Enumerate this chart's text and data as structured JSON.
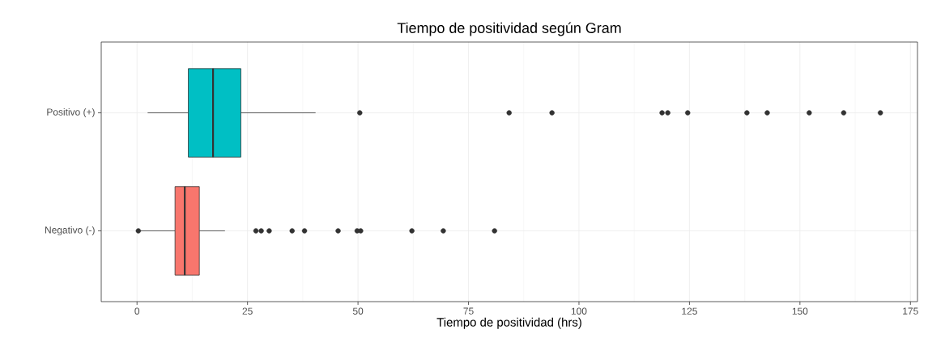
{
  "chart_data": {
    "type": "box",
    "title": "Tiempo de positividad según Gram",
    "xlabel": "Tiempo de positividad (hrs)",
    "orientation": "horizontal",
    "categories": [
      "Positivo (+)",
      "Negativo (-)"
    ],
    "colors": [
      "#00bfc4",
      "#f8766d"
    ],
    "boxes": [
      {
        "low": 2.4,
        "q1": 11.6,
        "median": 17.2,
        "q3": 23.5,
        "high": 40.4,
        "outliers": [
          50.4,
          84.2,
          93.9,
          118.8,
          120.1,
          124.6,
          138.0,
          142.6,
          152.1,
          159.9,
          168.2
        ]
      },
      {
        "low": 0.6,
        "q1": 8.6,
        "median": 10.8,
        "q3": 14.1,
        "high": 19.9,
        "outliers": [
          0.3,
          26.9,
          28.1,
          29.9,
          35.1,
          37.9,
          45.5,
          49.8,
          50.6,
          62.2,
          69.3,
          80.9
        ]
      }
    ],
    "xlim": [
      -8.1,
      176.6
    ],
    "xticks": [
      0,
      25,
      50,
      75,
      100,
      125,
      150,
      175
    ],
    "grid": true
  }
}
